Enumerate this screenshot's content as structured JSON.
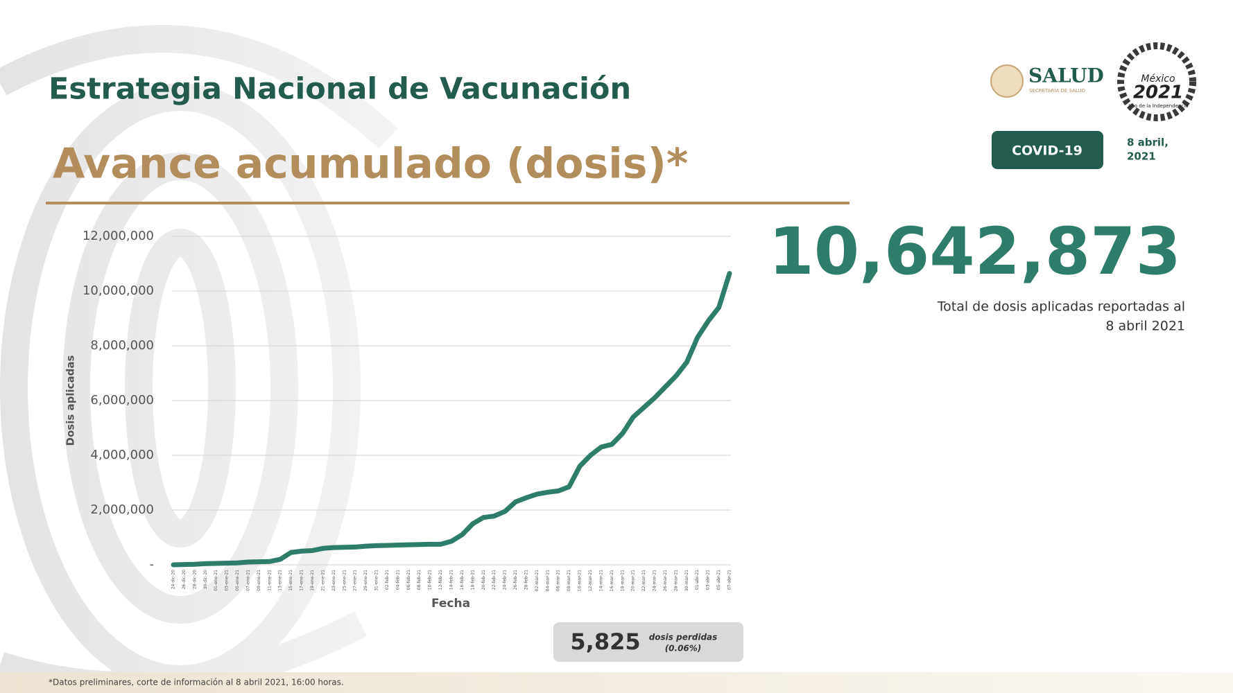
{
  "header": {
    "title": "Estrategia Nacional de Vacunación",
    "subtitle": "Avance acumulado (dosis)*",
    "logo_salud": "SALUD",
    "logo_salud_sub": "SECRETARÍA DE SALUD",
    "logo_mexico": "México",
    "logo_year": "2021",
    "logo_motto": "Año de la Independencia",
    "badge": "COVID-19",
    "date_line1": "8 abril,",
    "date_line2": "2021"
  },
  "kpi": {
    "total": "10,642,873",
    "caption_line1": "Total de dosis aplicadas reportadas al",
    "caption_line2": "8 abril 2021"
  },
  "lost": {
    "value": "5,825",
    "label": "dosis perdidas",
    "share": "(0.06%)"
  },
  "footer": "*Datos preliminares, corte de información al 8 abril 2021, 16:00 horas.",
  "chart_data": {
    "type": "line",
    "x_label": "Fecha",
    "y_label": "Dosis aplicadas",
    "color": "#2e7d6b",
    "grid": true,
    "categories": [
      "24-dic-20",
      "26-dic-20",
      "28-dic-20",
      "30-dic-20",
      "01-ene-21",
      "03-ene-21",
      "05-ene-21",
      "07-ene-21",
      "09-ene-21",
      "11-ene-21",
      "13-ene-21",
      "15-ene-21",
      "17-ene-21",
      "19-ene-21",
      "21-ene-21",
      "23-ene-21",
      "25-ene-21",
      "27-ene-21",
      "29-ene-21",
      "31-ene-21",
      "02-feb-21",
      "04-feb-21",
      "06-feb-21",
      "08-feb-21",
      "10-feb-21",
      "12-feb-21",
      "14-feb-21",
      "16-feb-21",
      "18-feb-21",
      "20-feb-21",
      "22-feb-21",
      "24-feb-21",
      "26-feb-21",
      "28-feb-21",
      "02-mar-21",
      "04-mar-21",
      "06-mar-21",
      "08-mar-21",
      "10-mar-21",
      "12-mar-21",
      "14-mar-21",
      "16-mar-21",
      "18-mar-21",
      "20-mar-21",
      "22-mar-21",
      "24-mar-21",
      "26-mar-21",
      "28-mar-21",
      "30-mar-21",
      "01-abr-21",
      "03-abr-21",
      "05-abr-21",
      "07-abr-21"
    ],
    "values": [
      0,
      10000,
      20000,
      40000,
      50000,
      60000,
      70000,
      100000,
      110000,
      120000,
      200000,
      450000,
      500000,
      520000,
      600000,
      630000,
      640000,
      650000,
      680000,
      700000,
      710000,
      720000,
      730000,
      740000,
      750000,
      750000,
      860000,
      1100000,
      1500000,
      1730000,
      1780000,
      1950000,
      2300000,
      2450000,
      2580000,
      2650000,
      2700000,
      2850000,
      3600000,
      4000000,
      4300000,
      4400000,
      4800000,
      5400000,
      5750000,
      6100000,
      6500000,
      6900000,
      7400000,
      8300000,
      8900000,
      9400000,
      10642873
    ],
    "ylim": [
      0,
      12000000
    ],
    "yticks": [
      {
        "value": 0,
        "label": "-"
      },
      {
        "value": 2000000,
        "label": "2,000,000"
      },
      {
        "value": 4000000,
        "label": "4,000,000"
      },
      {
        "value": 6000000,
        "label": "6,000,000"
      },
      {
        "value": 8000000,
        "label": "8,000,000"
      },
      {
        "value": 10000000,
        "label": "10,000,000"
      },
      {
        "value": 12000000,
        "label": "12,000,000"
      }
    ]
  }
}
